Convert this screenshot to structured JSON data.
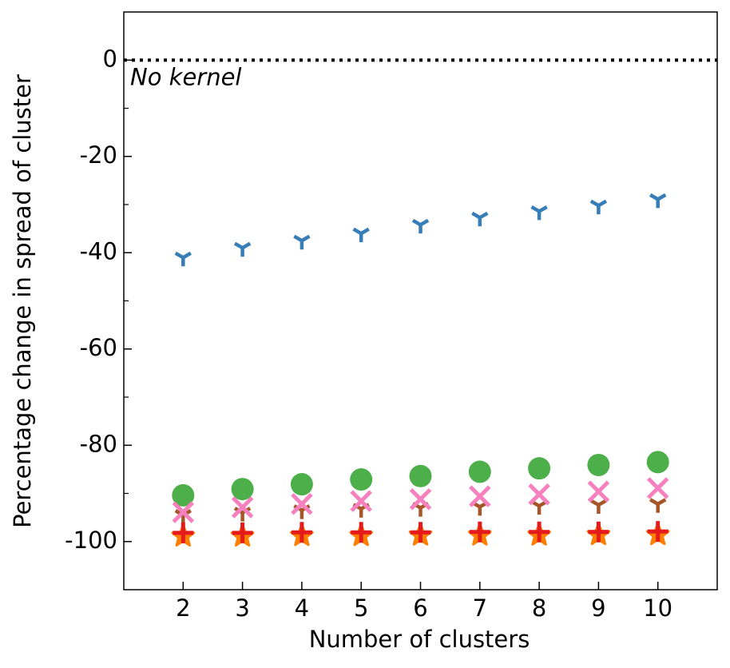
{
  "chart_data": {
    "type": "scatter",
    "xlabel": "Number of clusters",
    "ylabel": "Percentage change in spread of cluster",
    "x": [
      2,
      3,
      4,
      5,
      6,
      7,
      8,
      9,
      10
    ],
    "xlim": [
      1,
      11
    ],
    "xticks": [
      2,
      3,
      4,
      5,
      6,
      7,
      8,
      9,
      10
    ],
    "ylim": [
      -110,
      10
    ],
    "yticks": [
      0,
      -20,
      -40,
      -60,
      -80,
      -100
    ],
    "yminor_ticks": [
      -10,
      -30,
      -50,
      -70,
      -90
    ],
    "reference_line": {
      "y": 0,
      "label": "No kernel",
      "color": "#000000"
    },
    "series": [
      {
        "color": "#377eb8",
        "marker": "tri_down",
        "values": [
          -41,
          -39,
          -37.5,
          -36,
          -34.2,
          -32.7,
          -31.4,
          -30.2,
          -28.9
        ]
      },
      {
        "color": "#4daf4a",
        "marker": "circle",
        "values": [
          -90.4,
          -89.1,
          -88.1,
          -87.1,
          -86.4,
          -85.5,
          -84.8,
          -84.1,
          -83.5
        ]
      },
      {
        "color": "#a65628",
        "marker": "tri_down",
        "values": [
          -94.5,
          -94,
          -93.5,
          -93.2,
          -93,
          -92.8,
          -92.6,
          -92.4,
          -92.2
        ]
      },
      {
        "color": "#f781bf",
        "marker": "x",
        "values": [
          -93.9,
          -92.9,
          -92.2,
          -91.6,
          -91.2,
          -90.6,
          -90.2,
          -89.6,
          -88.9
        ]
      },
      {
        "color": "#ff7f00",
        "marker": "star",
        "values": [
          -98.9,
          -98.9,
          -98.8,
          -98.8,
          -98.7,
          -98.7,
          -98.7,
          -98.6,
          -98.6
        ]
      },
      {
        "color": "#e41a1c",
        "marker": "plus",
        "values": [
          -98.2,
          -98.2,
          -98.1,
          -98.1,
          -98.1,
          -98.0,
          -98.0,
          -98.0,
          -97.9
        ]
      }
    ]
  }
}
